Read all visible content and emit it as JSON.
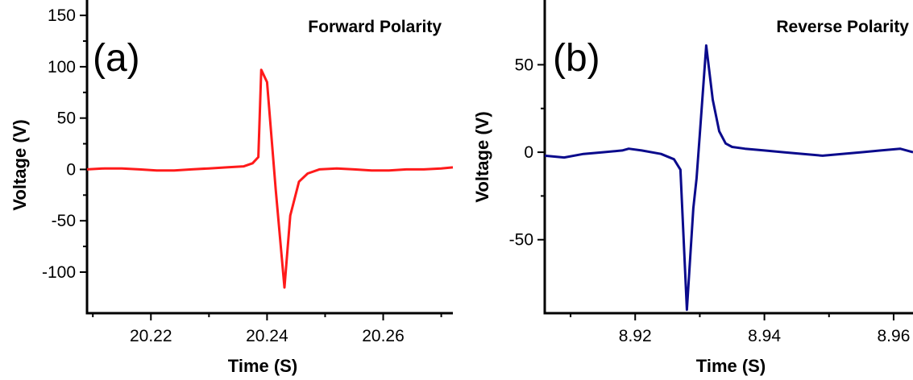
{
  "chart_data": [
    {
      "type": "line",
      "panel_label": "(a)",
      "title": "Forward Polarity",
      "xlabel": "Time (S)",
      "ylabel": "Voltage (V)",
      "xlim": [
        20.209,
        20.272
      ],
      "ylim": [
        -140,
        165
      ],
      "xticks": [
        20.22,
        20.24,
        20.26
      ],
      "xtick_labels": [
        "20.22",
        "20.24",
        "20.26"
      ],
      "yticks": [
        -100,
        -50,
        0,
        50,
        100,
        150
      ],
      "ytick_labels": [
        "-100",
        "-50",
        "0",
        "50",
        "100",
        "150"
      ],
      "grid": false,
      "series": [
        {
          "color": "#ff1a1a",
          "x": [
            20.209,
            20.212,
            20.215,
            20.218,
            20.221,
            20.224,
            20.227,
            20.23,
            20.233,
            20.236,
            20.2375,
            20.2385,
            20.239,
            20.24,
            20.2415,
            20.243,
            20.244,
            20.2455,
            20.247,
            20.249,
            20.252,
            20.255,
            20.258,
            20.261,
            20.264,
            20.267,
            20.27,
            20.272
          ],
          "y": [
            0,
            1,
            1,
            0,
            -1,
            -1,
            0,
            1,
            2,
            3,
            6,
            12,
            97,
            85,
            -20,
            -115,
            -45,
            -12,
            -4,
            0,
            1,
            0,
            -1,
            -1,
            0,
            0,
            1,
            2
          ]
        }
      ]
    },
    {
      "type": "line",
      "panel_label": "(b)",
      "title": "Reverse Polarity",
      "xlabel": "Time (S)",
      "ylabel": "Voltage (V)",
      "xlim": [
        8.906,
        8.963
      ],
      "ylim": [
        -92,
        87
      ],
      "xticks": [
        8.92,
        8.94,
        8.96
      ],
      "xtick_labels": [
        "8.92",
        "8.94",
        "8.96"
      ],
      "yticks": [
        -50,
        0,
        50
      ],
      "ytick_labels": [
        "-50",
        "0",
        "50"
      ],
      "grid": false,
      "series": [
        {
          "color": "#0a0a8c",
          "x": [
            8.906,
            8.909,
            8.912,
            8.915,
            8.918,
            8.919,
            8.921,
            8.924,
            8.926,
            8.927,
            8.928,
            8.929,
            8.9295,
            8.93,
            8.931,
            8.932,
            8.933,
            8.934,
            8.935,
            8.937,
            8.94,
            8.943,
            8.946,
            8.949,
            8.952,
            8.955,
            8.958,
            8.961,
            8.963
          ],
          "y": [
            -2,
            -3,
            -1,
            0,
            1,
            2,
            1,
            -1,
            -4,
            -10,
            -90,
            -32,
            -15,
            10,
            61,
            30,
            12,
            5,
            3,
            2,
            1,
            0,
            -1,
            -2,
            -1,
            0,
            1,
            2,
            0
          ]
        }
      ]
    }
  ]
}
